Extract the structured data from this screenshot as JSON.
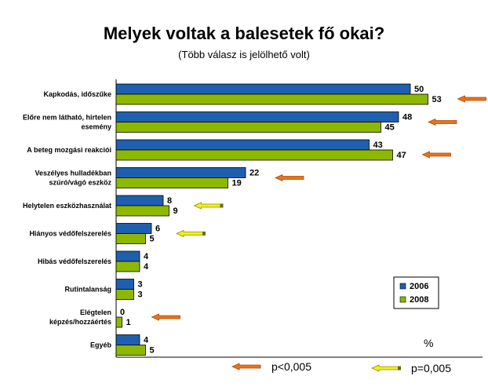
{
  "chart_data": {
    "type": "bar",
    "orientation": "horizontal",
    "title": "Melyek voltak a balesetek fő okai?",
    "subtitle": "(Több válasz is jelölhető volt)",
    "unit": "%",
    "categories": [
      [
        "Kapkodás, időszűke"
      ],
      [
        "Előre nem látható, hirtelen",
        "esemény"
      ],
      [
        "A beteg mozgási reakciói"
      ],
      [
        "Veszélyes hulladékban",
        "szúró/vágó eszköz"
      ],
      [
        "Helytelen eszközhasználat"
      ],
      [
        "Hiányos védőfelszerelés"
      ],
      [
        "Hibás védőfelszerelés"
      ],
      [
        "Rutintalanság"
      ],
      [
        "Elégtelen",
        "képzés/hozzáértés"
      ],
      [
        "Egyéb"
      ]
    ],
    "series": [
      {
        "name": "2006",
        "color": "#1F5FB0",
        "values": [
          50,
          48,
          43,
          22,
          8,
          6,
          4,
          3,
          0,
          4
        ]
      },
      {
        "name": "2008",
        "color": "#8DB800",
        "values": [
          53,
          45,
          47,
          19,
          9,
          5,
          4,
          3,
          1,
          5
        ]
      }
    ],
    "xlim": [
      0,
      60
    ],
    "legend_position": "bottom-right",
    "markers": [
      {
        "row": 0,
        "type": "orange"
      },
      {
        "row": 1,
        "type": "orange"
      },
      {
        "row": 2,
        "type": "orange"
      },
      {
        "row": 3,
        "type": "orange"
      },
      {
        "row": 4,
        "type": "yellow"
      },
      {
        "row": 5,
        "type": "yellow"
      },
      {
        "row": 8,
        "type": "orange"
      }
    ],
    "marker_key": [
      {
        "type": "orange",
        "label": "p<0,005",
        "color": "#E8731A"
      },
      {
        "type": "yellow",
        "label": "p=0,005",
        "color": "#F2F21A"
      }
    ]
  }
}
